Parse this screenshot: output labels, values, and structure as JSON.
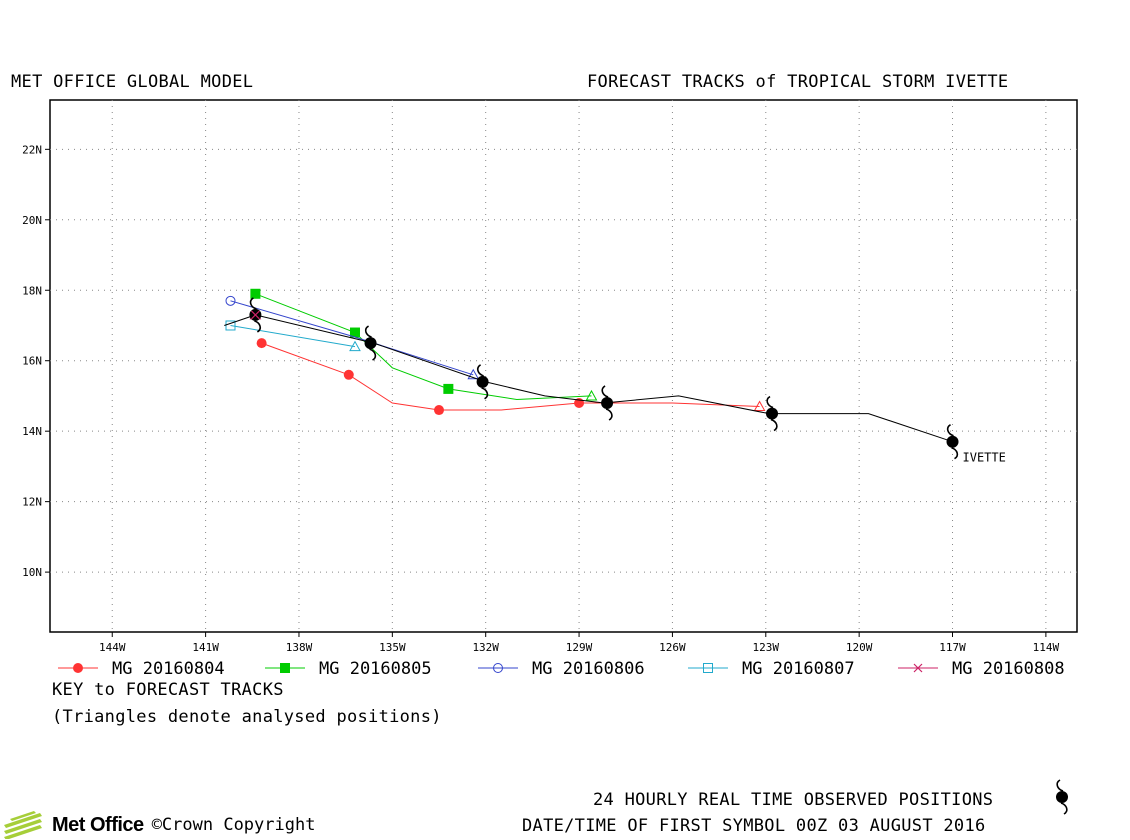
{
  "header": {
    "left_title": "MET OFFICE GLOBAL MODEL",
    "right_title": "FORECAST TRACKS of TROPICAL STORM IVETTE"
  },
  "key": {
    "title": "KEY to FORECAST TRACKS",
    "note": "(Triangles denote analysed positions)"
  },
  "footer": {
    "observed": "24 HOURLY REAL TIME OBSERVED POSITIONS",
    "datetime": "DATE/TIME OF FIRST SYMBOL 00Z 03 AUGUST 2016",
    "logo": "Met Office",
    "copyright": "©Crown Copyright"
  },
  "chart_data": {
    "type": "line",
    "title": "FORECAST TRACKS of TROPICAL STORM IVETTE",
    "xlim": [
      -146,
      -113
    ],
    "ylim": [
      8.3,
      23.4
    ],
    "x_ticks": [
      {
        "value": -144,
        "label": "144W"
      },
      {
        "value": -141,
        "label": "141W"
      },
      {
        "value": -138,
        "label": "138W"
      },
      {
        "value": -135,
        "label": "135W"
      },
      {
        "value": -132,
        "label": "132W"
      },
      {
        "value": -129,
        "label": "129W"
      },
      {
        "value": -126,
        "label": "126W"
      },
      {
        "value": -123,
        "label": "123W"
      },
      {
        "value": -120,
        "label": "120W"
      },
      {
        "value": -117,
        "label": "117W"
      },
      {
        "value": -114,
        "label": "114W"
      }
    ],
    "y_ticks": [
      {
        "value": 10,
        "label": "10N"
      },
      {
        "value": 12,
        "label": "12N"
      },
      {
        "value": 14,
        "label": "14N"
      },
      {
        "value": 16,
        "label": "16N"
      },
      {
        "value": 18,
        "label": "18N"
      },
      {
        "value": 20,
        "label": "20N"
      },
      {
        "value": 22,
        "label": "22N"
      }
    ],
    "grid": true,
    "observed": {
      "name": "IVETTE",
      "color": "#000000",
      "line": [
        [
          -117.0,
          13.7
        ],
        [
          -119.7,
          14.5
        ],
        [
          -122.9,
          14.5
        ],
        [
          -125.8,
          15.0
        ],
        [
          -128.2,
          14.8
        ],
        [
          -130.1,
          15.0
        ],
        [
          -132.0,
          15.4
        ],
        [
          -135.6,
          16.5
        ],
        [
          -139.4,
          17.3
        ],
        [
          -140.4,
          17.0
        ]
      ],
      "symbols": [
        [
          -117.0,
          13.7
        ],
        [
          -122.8,
          14.5
        ],
        [
          -128.1,
          14.8
        ],
        [
          -132.1,
          15.4
        ],
        [
          -135.7,
          16.5
        ],
        [
          -139.4,
          17.3
        ]
      ]
    },
    "series": [
      {
        "name": "MG 20160804",
        "color": "#ff3333",
        "marker": "circle-filled",
        "line": [
          [
            -139.2,
            16.5
          ],
          [
            -136.4,
            15.6
          ],
          [
            -135.0,
            14.8
          ],
          [
            -133.5,
            14.6
          ],
          [
            -131.5,
            14.6
          ],
          [
            -129.0,
            14.8
          ],
          [
            -126.0,
            14.8
          ],
          [
            -123.2,
            14.7
          ]
        ],
        "markers": [
          [
            -139.2,
            16.5
          ],
          [
            -136.4,
            15.6
          ],
          [
            -133.5,
            14.6
          ],
          [
            -129.0,
            14.8
          ]
        ],
        "analysed": [
          -123.2,
          14.7
        ]
      },
      {
        "name": "MG 20160805",
        "color": "#00cc00",
        "marker": "square-filled",
        "line": [
          [
            -139.4,
            17.9
          ],
          [
            -136.2,
            16.8
          ],
          [
            -135.0,
            15.8
          ],
          [
            -133.2,
            15.2
          ],
          [
            -131.0,
            14.9
          ],
          [
            -128.6,
            15.0
          ]
        ],
        "markers": [
          [
            -139.4,
            17.9
          ],
          [
            -136.2,
            16.8
          ],
          [
            -133.2,
            15.2
          ]
        ],
        "analysed": [
          -128.6,
          15.0
        ]
      },
      {
        "name": "MG 20160806",
        "color": "#3344cc",
        "marker": "circle-open",
        "line": [
          [
            -140.2,
            17.7
          ],
          [
            -136.3,
            16.7
          ],
          [
            -132.4,
            15.6
          ]
        ],
        "markers": [
          [
            -140.2,
            17.7
          ]
        ],
        "analysed": [
          -132.4,
          15.6
        ]
      },
      {
        "name": "MG 20160807",
        "color": "#22aacc",
        "marker": "square-open",
        "line": [
          [
            -140.2,
            17.0
          ],
          [
            -136.2,
            16.4
          ]
        ],
        "markers": [
          [
            -140.2,
            17.0
          ]
        ],
        "analysed": [
          -136.2,
          16.4
        ]
      },
      {
        "name": "MG 20160808",
        "color": "#cc2266",
        "marker": "x",
        "line": [
          [
            -139.4,
            17.3
          ]
        ],
        "markers": [],
        "analysed": [
          -139.4,
          17.3
        ]
      }
    ]
  }
}
